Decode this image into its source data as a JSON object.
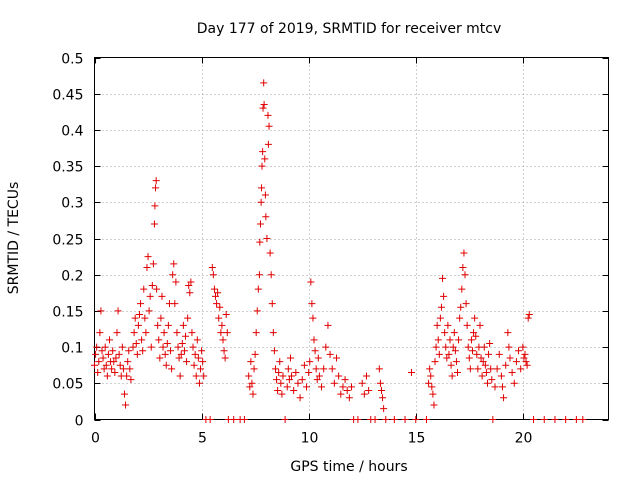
{
  "chart_data": {
    "type": "scatter",
    "title": "Day 177 of 2019, SRMTID for receiver mtcv",
    "xlabel": "GPS time / hours",
    "ylabel": "SRMTID / TECUs",
    "xlim": [
      0,
      24
    ],
    "ylim": [
      0,
      0.5
    ],
    "xticks": [
      0,
      5,
      10,
      15,
      20
    ],
    "xtick_labels": [
      "0",
      "5",
      "10",
      "15",
      "20"
    ],
    "yticks": [
      0,
      0.05,
      0.1,
      0.15,
      0.2,
      0.25,
      0.3,
      0.35,
      0.4,
      0.45,
      0.5
    ],
    "ytick_labels": [
      "0",
      "0.05",
      "0.1",
      "0.15",
      "0.2",
      "0.25",
      "0.3",
      "0.35",
      "0.4",
      "0.45",
      "0.5"
    ],
    "grid": true,
    "marker": "+",
    "series": [
      {
        "name": "SRMTID",
        "color": "#e00000",
        "points": [
          [
            0.0,
            0.075
          ],
          [
            0.05,
            0.09
          ],
          [
            0.1,
            0.1
          ],
          [
            0.15,
            0.065
          ],
          [
            0.2,
            0.08
          ],
          [
            0.25,
            0.12
          ],
          [
            0.3,
            0.15
          ],
          [
            0.35,
            0.095
          ],
          [
            0.4,
            0.085
          ],
          [
            0.45,
            0.07
          ],
          [
            0.5,
            0.1
          ],
          [
            0.55,
            0.075
          ],
          [
            0.6,
            0.06
          ],
          [
            0.65,
            0.09
          ],
          [
            0.7,
            0.11
          ],
          [
            0.75,
            0.08
          ],
          [
            0.8,
            0.07
          ],
          [
            0.85,
            0.095
          ],
          [
            0.9,
            0.08
          ],
          [
            0.95,
            0.065
          ],
          [
            1.0,
            0.085
          ],
          [
            1.05,
            0.12
          ],
          [
            1.1,
            0.15
          ],
          [
            1.15,
            0.09
          ],
          [
            1.2,
            0.075
          ],
          [
            1.25,
            0.06
          ],
          [
            1.3,
            0.1
          ],
          [
            1.35,
            0.07
          ],
          [
            1.4,
            0.035
          ],
          [
            1.45,
            0.02
          ],
          [
            1.5,
            0.06
          ],
          [
            1.55,
            0.08
          ],
          [
            1.6,
            0.095
          ],
          [
            1.65,
            0.07
          ],
          [
            1.7,
            0.055
          ],
          [
            1.8,
            0.1
          ],
          [
            1.85,
            0.12
          ],
          [
            1.9,
            0.14
          ],
          [
            1.95,
            0.105
          ],
          [
            2.0,
            0.09
          ],
          [
            2.05,
            0.13
          ],
          [
            2.1,
            0.145
          ],
          [
            2.15,
            0.16
          ],
          [
            2.2,
            0.11
          ],
          [
            2.25,
            0.095
          ],
          [
            2.3,
            0.18
          ],
          [
            2.35,
            0.14
          ],
          [
            2.4,
            0.12
          ],
          [
            2.45,
            0.21
          ],
          [
            2.5,
            0.225
          ],
          [
            2.55,
            0.15
          ],
          [
            2.6,
            0.17
          ],
          [
            2.65,
            0.1
          ],
          [
            2.7,
            0.185
          ],
          [
            2.75,
            0.215
          ],
          [
            2.8,
            0.27
          ],
          [
            2.82,
            0.295
          ],
          [
            2.85,
            0.32
          ],
          [
            2.88,
            0.33
          ],
          [
            2.9,
            0.18
          ],
          [
            2.95,
            0.13
          ],
          [
            3.0,
            0.11
          ],
          [
            3.05,
            0.085
          ],
          [
            3.1,
            0.14
          ],
          [
            3.15,
            0.17
          ],
          [
            3.2,
            0.1
          ],
          [
            3.25,
            0.12
          ],
          [
            3.3,
            0.09
          ],
          [
            3.35,
            0.075
          ],
          [
            3.4,
            0.105
          ],
          [
            3.45,
            0.13
          ],
          [
            3.5,
            0.16
          ],
          [
            3.55,
            0.095
          ],
          [
            3.6,
            0.07
          ],
          [
            3.65,
            0.2
          ],
          [
            3.7,
            0.215
          ],
          [
            3.75,
            0.16
          ],
          [
            3.8,
            0.19
          ],
          [
            3.85,
            0.12
          ],
          [
            3.9,
            0.1
          ],
          [
            3.95,
            0.085
          ],
          [
            4.0,
            0.06
          ],
          [
            4.05,
            0.09
          ],
          [
            4.1,
            0.105
          ],
          [
            4.15,
            0.13
          ],
          [
            4.2,
            0.095
          ],
          [
            4.25,
            0.115
          ],
          [
            4.3,
            0.08
          ],
          [
            4.35,
            0.14
          ],
          [
            4.4,
            0.185
          ],
          [
            4.45,
            0.175
          ],
          [
            4.5,
            0.19
          ],
          [
            4.55,
            0.12
          ],
          [
            4.6,
            0.1
          ],
          [
            4.65,
            0.075
          ],
          [
            4.7,
            0.09
          ],
          [
            4.75,
            0.06
          ],
          [
            4.8,
            0.11
          ],
          [
            4.85,
            0.085
          ],
          [
            4.9,
            0.05
          ],
          [
            4.95,
            0.07
          ],
          [
            5.0,
            0.095
          ],
          [
            5.05,
            0.08
          ],
          [
            5.1,
            0.06
          ],
          [
            5.2,
            0.0
          ],
          [
            5.4,
            0.0
          ],
          [
            5.5,
            0.21
          ],
          [
            5.55,
            0.2
          ],
          [
            5.6,
            0.18
          ],
          [
            5.65,
            0.17
          ],
          [
            5.7,
            0.16
          ],
          [
            5.75,
            0.175
          ],
          [
            5.8,
            0.14
          ],
          [
            5.85,
            0.155
          ],
          [
            5.9,
            0.12
          ],
          [
            5.95,
            0.13
          ],
          [
            6.0,
            0.11
          ],
          [
            6.05,
            0.095
          ],
          [
            6.1,
            0.085
          ],
          [
            6.15,
            0.145
          ],
          [
            6.2,
            0.12
          ],
          [
            6.25,
            0.0
          ],
          [
            6.5,
            0.0
          ],
          [
            6.8,
            0.0
          ],
          [
            7.0,
            0.0
          ],
          [
            7.2,
            0.06
          ],
          [
            7.25,
            0.045
          ],
          [
            7.3,
            0.08
          ],
          [
            7.35,
            0.05
          ],
          [
            7.4,
            0.035
          ],
          [
            7.45,
            0.07
          ],
          [
            7.5,
            0.09
          ],
          [
            7.55,
            0.12
          ],
          [
            7.6,
            0.15
          ],
          [
            7.65,
            0.18
          ],
          [
            7.7,
            0.2
          ],
          [
            7.72,
            0.245
          ],
          [
            7.75,
            0.27
          ],
          [
            7.78,
            0.3
          ],
          [
            7.8,
            0.32
          ],
          [
            7.82,
            0.35
          ],
          [
            7.85,
            0.37
          ],
          [
            7.87,
            0.43
          ],
          [
            7.9,
            0.465
          ],
          [
            7.92,
            0.435
          ],
          [
            7.95,
            0.36
          ],
          [
            7.98,
            0.31
          ],
          [
            8.0,
            0.28
          ],
          [
            8.05,
            0.25
          ],
          [
            8.1,
            0.42
          ],
          [
            8.12,
            0.38
          ],
          [
            8.15,
            0.405
          ],
          [
            8.2,
            0.23
          ],
          [
            8.25,
            0.2
          ],
          [
            8.3,
            0.16
          ],
          [
            8.35,
            0.12
          ],
          [
            8.4,
            0.095
          ],
          [
            8.45,
            0.07
          ],
          [
            8.5,
            0.055
          ],
          [
            8.55,
            0.04
          ],
          [
            8.6,
            0.065
          ],
          [
            8.65,
            0.08
          ],
          [
            8.7,
            0.05
          ],
          [
            8.75,
            0.035
          ],
          [
            8.8,
            0.06
          ],
          [
            8.9,
            0.0
          ],
          [
            9.0,
            0.045
          ],
          [
            9.05,
            0.07
          ],
          [
            9.1,
            0.055
          ],
          [
            9.15,
            0.085
          ],
          [
            9.2,
            0.06
          ],
          [
            9.3,
            0.04
          ],
          [
            9.4,
            0.065
          ],
          [
            9.5,
            0.05
          ],
          [
            9.6,
            0.03
          ],
          [
            9.7,
            0.055
          ],
          [
            9.8,
            0.075
          ],
          [
            9.9,
            0.045
          ],
          [
            10.0,
            0.065
          ],
          [
            10.05,
            0.08
          ],
          [
            10.1,
            0.19
          ],
          [
            10.15,
            0.16
          ],
          [
            10.2,
            0.14
          ],
          [
            10.25,
            0.11
          ],
          [
            10.3,
            0.095
          ],
          [
            10.35,
            0.07
          ],
          [
            10.4,
            0.055
          ],
          [
            10.45,
            0.085
          ],
          [
            10.5,
            0.06
          ],
          [
            10.6,
            0.045
          ],
          [
            10.7,
            0.07
          ],
          [
            10.8,
            0.1
          ],
          [
            10.9,
            0.13
          ],
          [
            11.0,
            0.09
          ],
          [
            11.1,
            0.07
          ],
          [
            11.2,
            0.05
          ],
          [
            11.3,
            0.085
          ],
          [
            11.4,
            0.06
          ],
          [
            11.5,
            0.035
          ],
          [
            11.6,
            0.045
          ],
          [
            11.7,
            0.055
          ],
          [
            11.8,
            0.04
          ],
          [
            11.9,
            0.03
          ],
          [
            12.0,
            0.045
          ],
          [
            12.1,
            0.0
          ],
          [
            12.3,
            0.0
          ],
          [
            12.5,
            0.05
          ],
          [
            12.6,
            0.035
          ],
          [
            12.7,
            0.06
          ],
          [
            12.8,
            0.04
          ],
          [
            12.9,
            0.0
          ],
          [
            13.1,
            0.0
          ],
          [
            13.3,
            0.07
          ],
          [
            13.35,
            0.05
          ],
          [
            13.4,
            0.04
          ],
          [
            13.45,
            0.03
          ],
          [
            13.5,
            0.015
          ],
          [
            13.6,
            0.0
          ],
          [
            14.0,
            0.0
          ],
          [
            14.5,
            0.0
          ],
          [
            14.8,
            0.065
          ],
          [
            15.0,
            0.0
          ],
          [
            15.5,
            0.0
          ],
          [
            15.6,
            0.05
          ],
          [
            15.65,
            0.07
          ],
          [
            15.7,
            0.06
          ],
          [
            15.75,
            0.045
          ],
          [
            15.8,
            0.035
          ],
          [
            15.85,
            0.02
          ],
          [
            15.9,
            0.08
          ],
          [
            15.95,
            0.1
          ],
          [
            16.0,
            0.13
          ],
          [
            16.05,
            0.11
          ],
          [
            16.1,
            0.09
          ],
          [
            16.15,
            0.14
          ],
          [
            16.2,
            0.155
          ],
          [
            16.25,
            0.195
          ],
          [
            16.3,
            0.17
          ],
          [
            16.35,
            0.12
          ],
          [
            16.4,
            0.1
          ],
          [
            16.45,
            0.085
          ],
          [
            16.5,
            0.13
          ],
          [
            16.55,
            0.09
          ],
          [
            16.6,
            0.11
          ],
          [
            16.65,
            0.075
          ],
          [
            16.7,
            0.06
          ],
          [
            16.75,
            0.1
          ],
          [
            16.8,
            0.12
          ],
          [
            16.85,
            0.095
          ],
          [
            16.9,
            0.08
          ],
          [
            16.95,
            0.065
          ],
          [
            17.0,
            0.11
          ],
          [
            17.05,
            0.14
          ],
          [
            17.1,
            0.155
          ],
          [
            17.15,
            0.18
          ],
          [
            17.2,
            0.21
          ],
          [
            17.25,
            0.23
          ],
          [
            17.3,
            0.2
          ],
          [
            17.35,
            0.16
          ],
          [
            17.4,
            0.13
          ],
          [
            17.45,
            0.1
          ],
          [
            17.5,
            0.085
          ],
          [
            17.55,
            0.07
          ],
          [
            17.6,
            0.11
          ],
          [
            17.65,
            0.095
          ],
          [
            17.7,
            0.12
          ],
          [
            17.75,
            0.14
          ],
          [
            17.8,
            0.115
          ],
          [
            17.85,
            0.09
          ],
          [
            17.9,
            0.07
          ],
          [
            17.95,
            0.1
          ],
          [
            18.0,
            0.13
          ],
          [
            18.05,
            0.085
          ],
          [
            18.1,
            0.06
          ],
          [
            18.15,
            0.08
          ],
          [
            18.2,
            0.1
          ],
          [
            18.25,
            0.075
          ],
          [
            18.3,
            0.065
          ],
          [
            18.35,
            0.05
          ],
          [
            18.4,
            0.09
          ],
          [
            18.45,
            0.105
          ],
          [
            18.5,
            0.07
          ],
          [
            18.55,
            0.055
          ],
          [
            18.6,
            0.0
          ],
          [
            18.7,
            0.045
          ],
          [
            18.8,
            0.07
          ],
          [
            18.9,
            0.09
          ],
          [
            19.0,
            0.06
          ],
          [
            19.05,
            0.045
          ],
          [
            19.1,
            0.03
          ],
          [
            19.2,
            0.075
          ],
          [
            19.3,
            0.12
          ],
          [
            19.35,
            0.1
          ],
          [
            19.4,
            0.085
          ],
          [
            19.5,
            0.065
          ],
          [
            19.6,
            0.05
          ],
          [
            19.7,
            0.08
          ],
          [
            19.8,
            0.095
          ],
          [
            19.9,
            0.07
          ],
          [
            20.0,
            0.1
          ],
          [
            20.05,
            0.085
          ],
          [
            20.1,
            0.09
          ],
          [
            20.15,
            0.08
          ],
          [
            20.2,
            0.075
          ],
          [
            20.25,
            0.14
          ],
          [
            20.3,
            0.145
          ],
          [
            20.5,
            0.0
          ],
          [
            21.0,
            0.0
          ],
          [
            21.5,
            0.0
          ],
          [
            22.0,
            0.0
          ],
          [
            22.5,
            0.0
          ],
          [
            22.8,
            0.0
          ]
        ]
      }
    ]
  }
}
